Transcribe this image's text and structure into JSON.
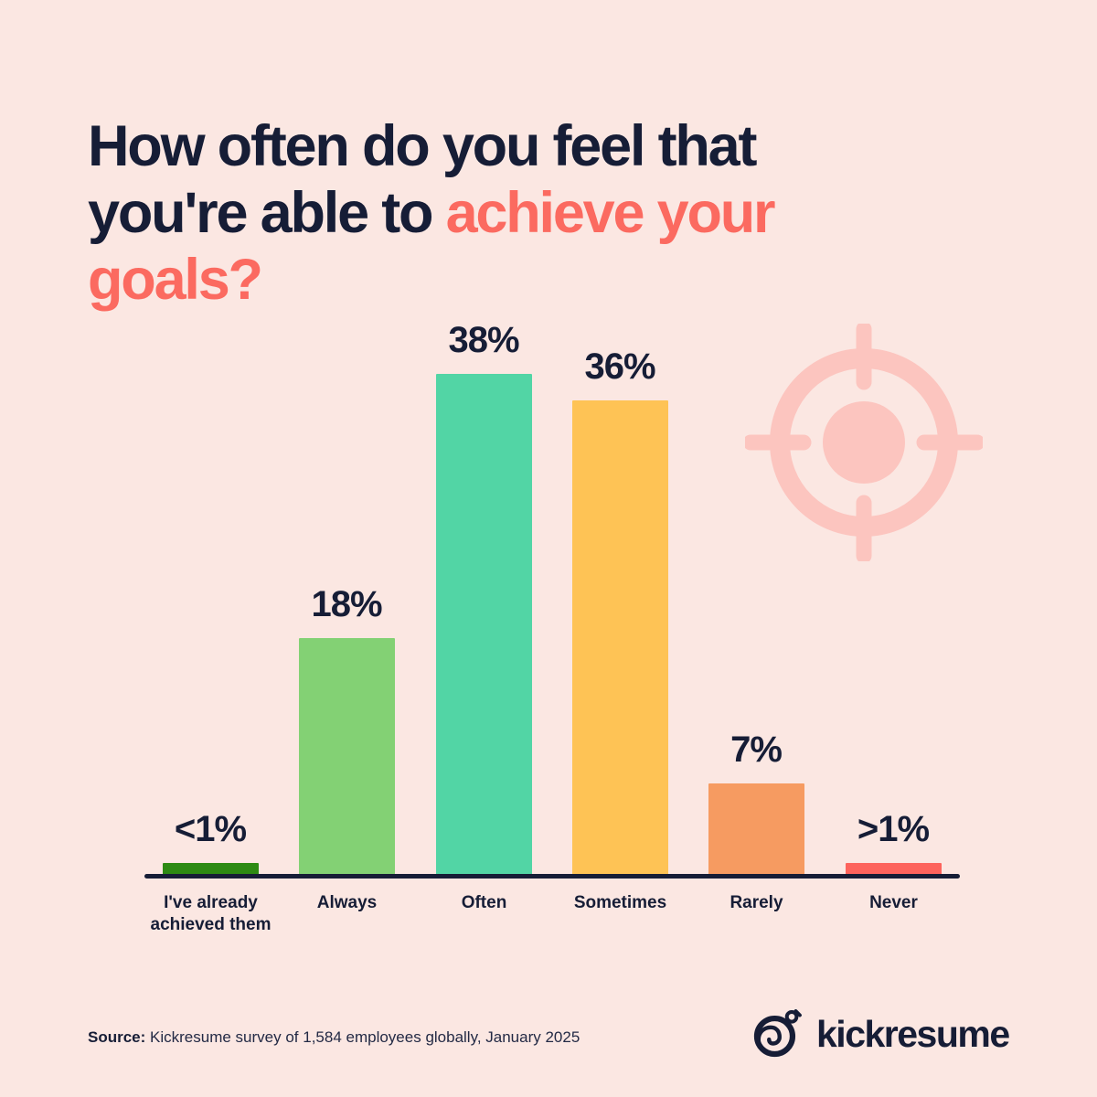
{
  "title": {
    "line1": "How often do you feel that",
    "line2_dark": "you're able to ",
    "line2_accent": "achieve your",
    "line3_accent": "goals?"
  },
  "chart_data": {
    "type": "bar",
    "title": "How often do you feel that you're able to achieve your goals?",
    "categories": [
      "I've already achieved them",
      "Always",
      "Often",
      "Sometimes",
      "Rarely",
      "Never"
    ],
    "values": [
      1,
      18,
      38,
      36,
      7,
      1
    ],
    "value_labels": [
      "<1%",
      "18%",
      "38%",
      "36%",
      "7%",
      ">1%"
    ],
    "bar_ids": [
      "already-achieved",
      "always",
      "often",
      "sometimes",
      "rarely",
      "never"
    ],
    "bar_colors": [
      "#2d8a13",
      "#83d174",
      "#52d5a5",
      "#fec355",
      "#f69b61",
      "#fd635c"
    ],
    "ylim": [
      0,
      40
    ],
    "grid": "off",
    "legend": "none",
    "xlabel": "",
    "ylabel": "",
    "axis_line_color": "#161d36"
  },
  "footer": {
    "source_label": "Source:",
    "source_text": " Kickresume survey of 1,584 employees globally, January 2025",
    "brand": "kickresume"
  },
  "colors": {
    "background": "#fbe7e2",
    "text_navy": "#161d36",
    "accent_coral": "#fb6a60",
    "target_pink": "#fcc5bf"
  }
}
